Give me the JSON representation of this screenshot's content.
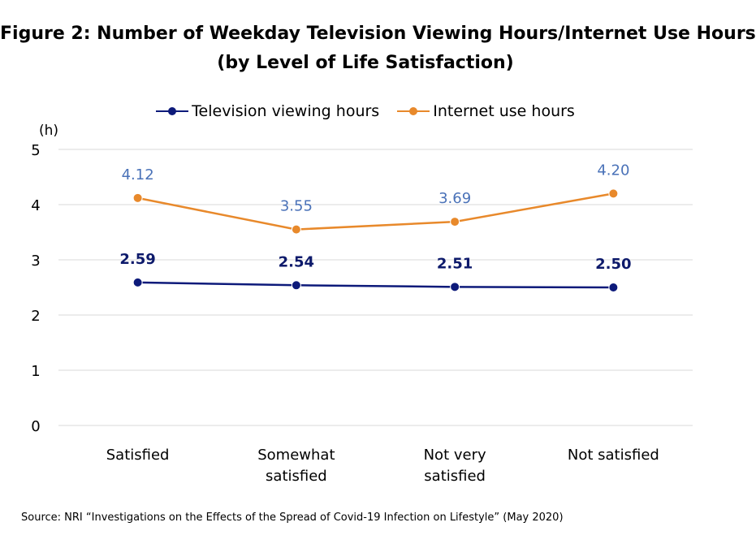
{
  "title_line1": "Figure 2: Number of Weekday Television Viewing Hours/Internet Use Hours",
  "title_line2": "(by Level of Life Satisfaction)",
  "y_unit": "(h)",
  "source": "Source: NRI “Investigations on the Effects of the Spread of Covid-19 Infection on Lifestyle” (May 2020)",
  "colors": {
    "tv": "#0d1a7a",
    "internet": "#e8892b",
    "tv_label": "#0d1a6b",
    "internet_label": "#4a72b8",
    "grid": "#d9d9d9"
  },
  "chart_data": {
    "type": "line",
    "categories": [
      [
        "Satisfied"
      ],
      [
        "Somewhat",
        "satisfied"
      ],
      [
        "Not very",
        "satisfied"
      ],
      [
        "Not satisfied"
      ]
    ],
    "ylim": [
      0,
      5
    ],
    "yticks": [
      0,
      1,
      2,
      3,
      4,
      5
    ],
    "grid": true,
    "legend": "top-center",
    "series": [
      {
        "name": "Television viewing hours",
        "values": [
          2.59,
          2.54,
          2.51,
          2.5
        ],
        "labels": [
          "2.59",
          "2.54",
          "2.51",
          "2.50"
        ]
      },
      {
        "name": "Internet use hours",
        "values": [
          4.12,
          3.55,
          3.69,
          4.2
        ],
        "labels": [
          "4.12",
          "3.55",
          "3.69",
          "4.20"
        ]
      }
    ]
  }
}
